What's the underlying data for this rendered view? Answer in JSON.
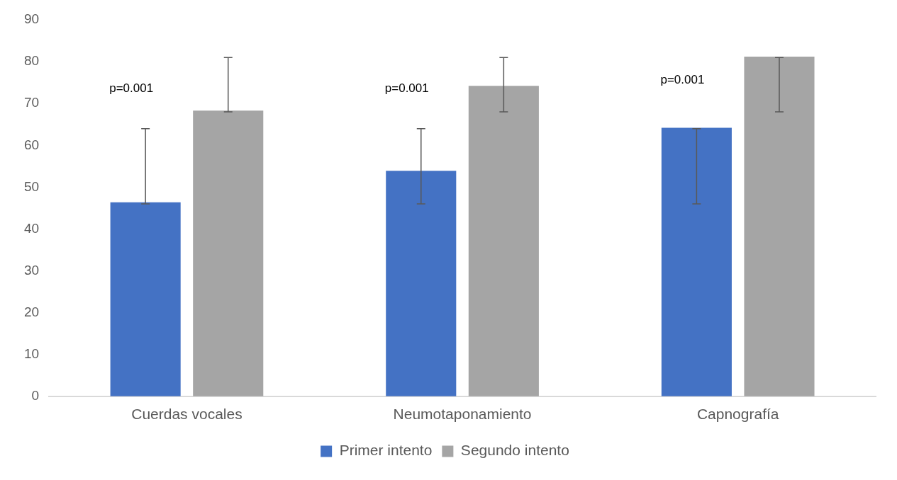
{
  "chart_data": {
    "type": "bar",
    "categories": [
      "Cuerdas vocales",
      "Neumotaponamiento",
      "Capnografía"
    ],
    "series": [
      {
        "name": "Primer intento",
        "color": "#4472c4",
        "values": [
          46.4,
          53.9,
          64.2
        ],
        "errors": [
          [
            46,
            64
          ],
          [
            46,
            64
          ],
          [
            46,
            64
          ]
        ]
      },
      {
        "name": "Segundo intento",
        "color": "#a5a5a5",
        "values": [
          68.3,
          74.2,
          81.2
        ],
        "errors": [
          [
            68,
            81
          ],
          [
            68,
            81
          ],
          [
            68,
            81
          ]
        ]
      }
    ],
    "ylim": [
      0,
      90
    ],
    "yticks": [
      0,
      10,
      20,
      30,
      40,
      50,
      60,
      70,
      80,
      90
    ],
    "grid": false,
    "legend": "bottom",
    "annotations": [
      "p=0.001",
      "p=0.001",
      "p=0.001"
    ]
  }
}
